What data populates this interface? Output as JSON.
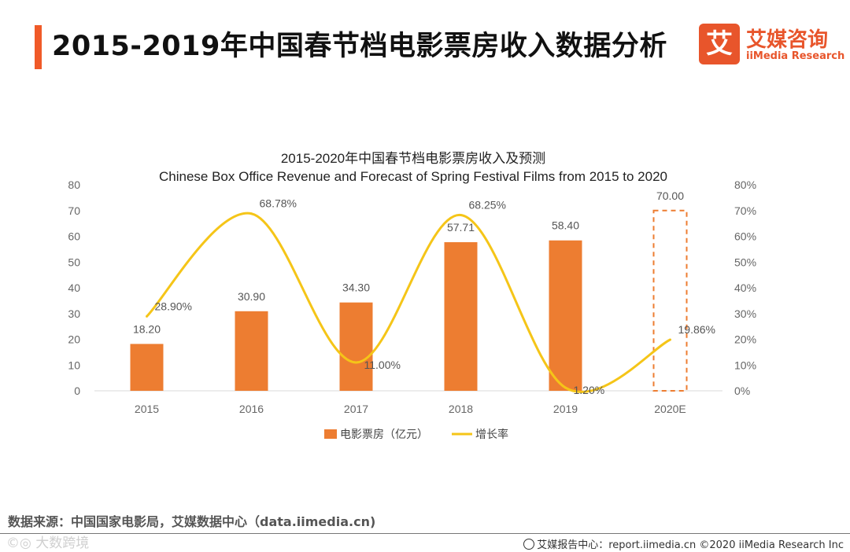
{
  "header": {
    "title": "2015-2019年中国春节档电影票房收入数据分析"
  },
  "logo": {
    "mark": "艾",
    "name_cn": "艾媒咨询",
    "name_en": "iiMedia Research"
  },
  "colors": {
    "accent": "#f05a28",
    "bar": "#ed7d31",
    "line": "#f5c518",
    "grid": "#d9d9d9"
  },
  "chart_data": {
    "type": "bar",
    "title": "2015-2020年中国春节档电影票房收入及预测",
    "subtitle": "Chinese Box Office Revenue and Forecast of Spring Festival Films from 2015 to 2020",
    "categories": [
      "2015",
      "2016",
      "2017",
      "2018",
      "2019",
      "2020E"
    ],
    "series": [
      {
        "name": "电影票房（亿元）",
        "kind": "bar",
        "axis": "left",
        "values": [
          18.2,
          30.9,
          34.3,
          57.71,
          58.4,
          70.0
        ],
        "labels": [
          "18.20",
          "30.90",
          "34.30",
          "57.71",
          "58.40",
          "70.00"
        ],
        "forecast_flags": [
          false,
          false,
          false,
          false,
          false,
          true
        ]
      },
      {
        "name": "增长率",
        "kind": "line",
        "axis": "right",
        "values": [
          28.9,
          68.78,
          11.0,
          68.25,
          1.2,
          19.86
        ],
        "labels": [
          "28.90%",
          "68.78%",
          "11.00%",
          "68.25%",
          "1.20%",
          "19.86%"
        ]
      }
    ],
    "y_left": {
      "ylim": [
        0,
        80
      ],
      "ticks": [
        "0",
        "10",
        "20",
        "30",
        "40",
        "50",
        "60",
        "70",
        "80"
      ]
    },
    "y_right": {
      "ylim": [
        0,
        80
      ],
      "ticks": [
        "0%",
        "10%",
        "20%",
        "30%",
        "40%",
        "50%",
        "60%",
        "70%",
        "80%"
      ]
    },
    "legend_position": "bottom-center",
    "grid": false
  },
  "footer": {
    "source": "数据来源：中国国家电影局，艾媒数据中心（data.iimedia.cn)",
    "watermark": "©◎ 大数跨境",
    "report": "艾媒报告中心：report.iimedia.cn  ©2020  iiMedia Research  Inc"
  }
}
